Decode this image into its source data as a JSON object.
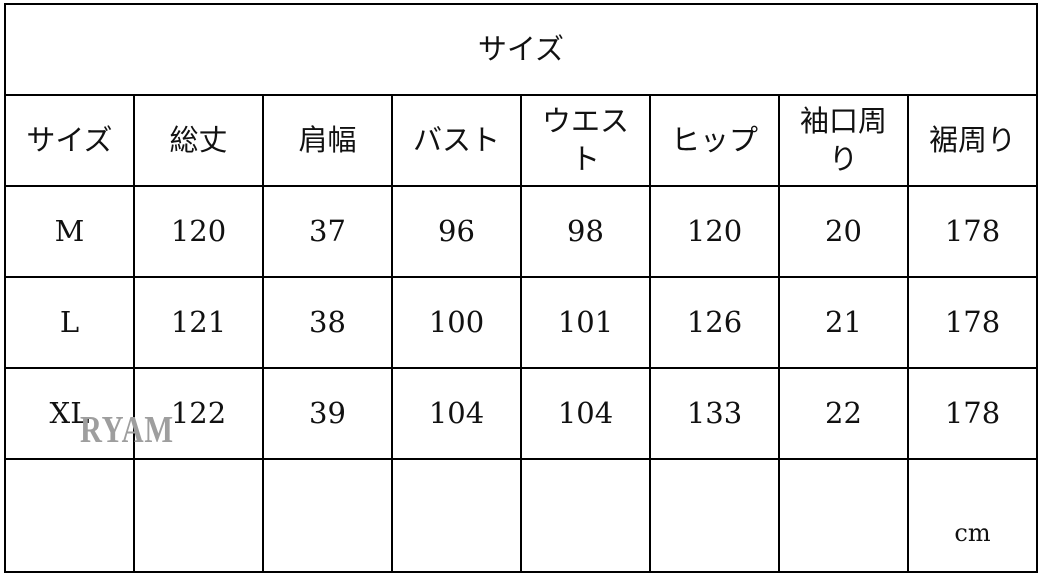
{
  "title": "サイズ",
  "headers": [
    "サイズ",
    "総丈",
    "肩幅",
    "バスト",
    "ウエスト",
    "ヒップ",
    "袖口周り",
    "裾周り"
  ],
  "rows": [
    [
      "M",
      "120",
      "37",
      "96",
      "98",
      "120",
      "20",
      "178"
    ],
    [
      "L",
      "121",
      "38",
      "100",
      "101",
      "126",
      "21",
      "178"
    ],
    [
      "XL",
      "122",
      "39",
      "104",
      "104",
      "133",
      "22",
      "178"
    ]
  ],
  "unit": "cm",
  "watermark": "RYAM"
}
